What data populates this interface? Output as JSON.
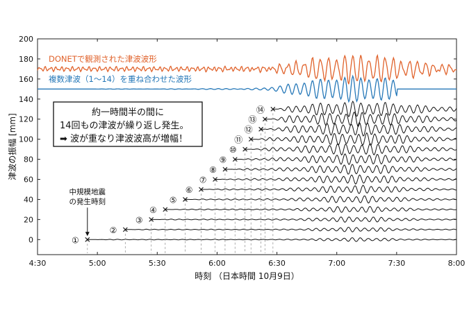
{
  "chart_data": {
    "type": "line",
    "xlabel": "時刻 （日本時間 10月9日）",
    "ylabel": "津波の振幅 [mm]",
    "x_ticks": [
      "4:30",
      "5:00",
      "5:30",
      "6:00",
      "6:30",
      "7:00",
      "7:30",
      "8:00"
    ],
    "y_ticks": [
      "0",
      "20",
      "40",
      "60",
      "80",
      "100",
      "120",
      "140",
      "160",
      "180",
      "200"
    ],
    "xlim": [
      "4:30",
      "8:00"
    ],
    "ylim": [
      -15,
      200
    ],
    "legend": [
      {
        "label": "DONETで観測された津波波形",
        "color": "#e0622b",
        "baseline": 170
      },
      {
        "label": "複数津波（1〜14）を重ね合わせた波形",
        "color": "#2678b8",
        "baseline": 150
      }
    ],
    "annotation_box": {
      "lines": [
        "約一時間半の間に",
        "14回もの津波が繰り返し発生。",
        "➡ 波が重なり津波波高が増幅！"
      ]
    },
    "earthquake_label": [
      "中規模地震",
      "の発生時刻"
    ],
    "events": [
      {
        "label": "①",
        "time": "4:55",
        "baseline": 0
      },
      {
        "label": "②",
        "time": "5:14",
        "baseline": 10
      },
      {
        "label": "③",
        "time": "5:27",
        "baseline": 20
      },
      {
        "label": "④",
        "time": "5:34",
        "baseline": 30
      },
      {
        "label": "⑤",
        "time": "5:44",
        "baseline": 40
      },
      {
        "label": "⑥",
        "time": "5:52",
        "baseline": 50
      },
      {
        "label": "⑦",
        "time": "5:59",
        "baseline": 60
      },
      {
        "label": "⑧",
        "time": "6:04",
        "baseline": 70
      },
      {
        "label": "⑨",
        "time": "6:09",
        "baseline": 80
      },
      {
        "label": "⑩",
        "time": "6:14",
        "baseline": 90
      },
      {
        "label": "⑪",
        "time": "6:17",
        "baseline": 100
      },
      {
        "label": "⑫",
        "time": "6:22",
        "baseline": 110
      },
      {
        "label": "⑬",
        "time": "6:24",
        "baseline": 120
      },
      {
        "label": "⑭",
        "time": "6:28",
        "baseline": 130
      }
    ],
    "grid": false
  }
}
